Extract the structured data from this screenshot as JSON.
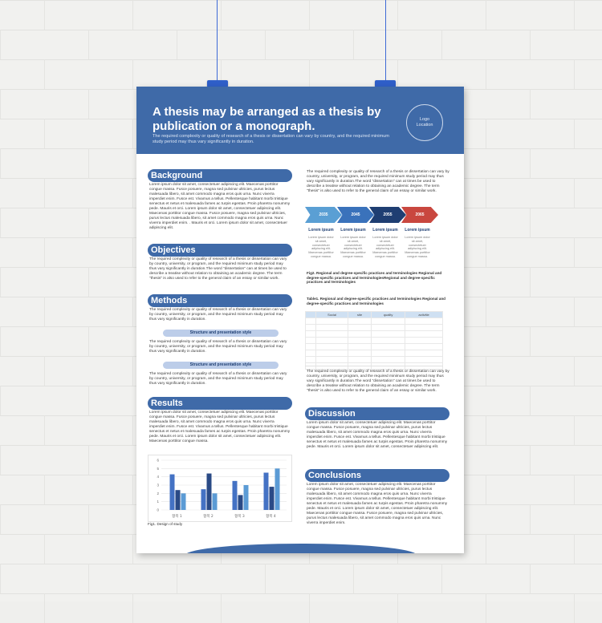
{
  "poster": {
    "title": "A thesis may be arranged as a thesis by publication or a monograph.",
    "subtitle": "The required complexity or quality of research of a thesis or dissertation can vary by country, and the required minimum study period may thus vary significantly in duration.",
    "logo_line1": "Logo",
    "logo_line2": "Location"
  },
  "background": {
    "heading": "Background",
    "text": "Lorem ipsum dolor sit amet, consectetuer adipiscing elit. Maecenas porttitor congue massa. Fusce posuere, magna sed pulvinar ultricies, purus lectus malesuada libero, sit amet commodo magna eros quis urna. Nunc viverra imperdiet enim. Fusce est. Vivamus a tellus. Pellentesque habitant morbi tristique senectus et netus et malesuada fames ac turpis egestas. Proin pharetra nonummy pede. Mauris et orci. Lorem ipsum dolor sit amet, consectetuer adipiscing elit. Maecenas porttitor congue massa. Fusce posuere, magna sed pulvinar ultricies, purus lectus malesuada libero, sit amet commodo magna eros quis urna. Nunc viverra imperdiet enim. . Mauris et orci. Lorem ipsum dolor sit amet, consectetuer adipiscing elit."
  },
  "objectives": {
    "heading": "Objectives",
    "text": "The required complexity or quality of research of a thesis or dissertation can vary by country, university, or program, and the required minimum study period may thus vary significantly in duration.The word \"dissertation\" can at times be used to describe a treatise without relation to obtaining an academic degree. The term \"thesis\" is also used to refer to the general claim of an essay or similar work."
  },
  "methods": {
    "heading": "Methods",
    "text1": "The required complexity or quality of research of a thesis or dissertation can vary by country, university, or program, and the required minimum study period may thus vary significantly in duration.",
    "pill1": "Structure and presentation style",
    "text2": "The required complexity or quality of research of a thesis or dissertation can vary by country, university, or program, and the required minimum study period may thus vary significantly in duration.",
    "pill2": "Structure and presentation style",
    "text3": "The required complexity or quality of research of a thesis or dissertation can vary by country, university, or program, and the required minimum study period may thus vary significantly in duration."
  },
  "results": {
    "heading": "Results",
    "text": "Lorem ipsum dolor sit amet, consectetuer adipiscing elit. Maecenas porttitor congue massa. Fusce posuere, magna sed pulvinar ultricies, purus lectus malesuada libero, sit amet commodo magna eros quis urna. Nunc viverra imperdiet enim. Fusce est. Vivamus a tellus. Pellentesque habitant morbi tristique senectus et netus et malesuada fames ac turpis egestas. Proin pharetra nonummy pede. Mauris et orci. Lorem ipsum dolor sit amet, consectetuer adipiscing elit. Maecenas porttitor congue massa.",
    "fig_caption": "Fig1. Design of study"
  },
  "chart_data": {
    "type": "bar",
    "categories": [
      "항목 1",
      "항목 2",
      "항목 3",
      "항목 4"
    ],
    "series": [
      {
        "values": [
          4.3,
          2.5,
          3.5,
          4.5
        ],
        "color": "#4472c4"
      },
      {
        "values": [
          2.4,
          4.4,
          1.8,
          2.8
        ],
        "color": "#2a4a86"
      },
      {
        "values": [
          2.0,
          2.0,
          3.0,
          5.0
        ],
        "color": "#5b9bd5"
      }
    ],
    "ylim": [
      0,
      6
    ],
    "yticks": [
      0,
      1,
      2,
      3,
      4,
      5,
      6
    ],
    "grid": true
  },
  "right": {
    "intro": "The required complexity or quality of research of a thesis or dissertation can vary by country, university, or program, and the required minimum study period may thus vary significantly in duration.The word \"dissertation\" can at times be used to describe a treatise without relation to obtaining an academic degree. The term \"thesis\" is also used to refer to the general claim of an essay or similar work.",
    "timeline": [
      {
        "year": "2035",
        "label": "Lorem ipsum",
        "desc": "Lorem ipsum dolor sit amet, consectetuer adipiscing elit. Maecenas porttitor congue massa.",
        "color": "#5a9fd4"
      },
      {
        "year": "2045",
        "label": "Lorem ipsum",
        "desc": "Lorem ipsum dolor sit amet, consectetuer adipiscing elit. Maecenas porttitor congue massa.",
        "color": "#3a72bb"
      },
      {
        "year": "2055",
        "label": "Lorem ipsum",
        "desc": "Lorem ipsum dolor sit amet, consectetuer adipiscing elit. Maecenas porttitor congue massa.",
        "color": "#1f3e72"
      },
      {
        "year": "2065",
        "label": "Lorem ipsum",
        "desc": "Lorem ipsum dolor sit amet, consectetuer adipiscing elit. Maecenas porttitor congue massa.",
        "color": "#c9473f"
      }
    ],
    "fig2_caption": "Fig2. Regional and degree-specific practices and terminologies Regional and degree-specific practices and terminologiesRegional and degree-specific practices and terminologies",
    "table_caption": "Table1. Regional and degree-specific practices and terminologies Regional and degree-specific practices and terminologies",
    "table_headers": [
      "",
      "Social",
      "site",
      "quality",
      "activitie"
    ],
    "text_after_table": "The required complexity or quality of research of a thesis or dissertation can vary by country, university, or program, and the required minimum study period may thus vary significantly in duration.The word \"dissertation\" can at times be used to describe a treatise without relation to obtaining an academic degree. The term \"thesis\" is also used to refer to the general claim of an essay or similar work."
  },
  "discussion": {
    "heading": "Discussion",
    "text": "Lorem ipsum dolor sit amet, consectetuer adipiscing elit. Maecenas porttitor congue massa. Fusce posuere, magna sed pulvinar ultricies, purus lectus malesuada libero, sit amet commodo magna eros quis urna. Nunc viverra imperdiet enim. Fusce est. Vivamus a tellus. Pellentesque habitant morbi tristique senectus et netus et malesuada fames ac turpis egestas. Proin pharetra nonummy pede. Mauris et orci. Lorem ipsum dolor sit amet, consectetuer adipiscing elit."
  },
  "conclusions": {
    "heading": "Conclusions",
    "text": "Lorem ipsum dolor sit amet, consectetuer adipiscing elit. Maecenas porttitor congue massa. Fusce posuere, magna sed pulvinar ultricies, purus lectus malesuada libero, sit amet commodo magna eros quis urna. Nunc viverra imperdiet enim. Fusce est. Vivamus a tellus. Pellentesque habitant morbi tristique senectus et netus et malesuada fames ac turpis egestas. Proin pharetra nonummy pede. Mauris et orci. Lorem ipsum dolor sit amet, consectetuer adipiscing elit. Maecenas porttitor congue massa. Fusce posuere, magna sed pulvinar ultricies, purus lectus malesuada libero, sit amet commodo magna eros quis urna. Nunc viverra imperdiet enim."
  }
}
